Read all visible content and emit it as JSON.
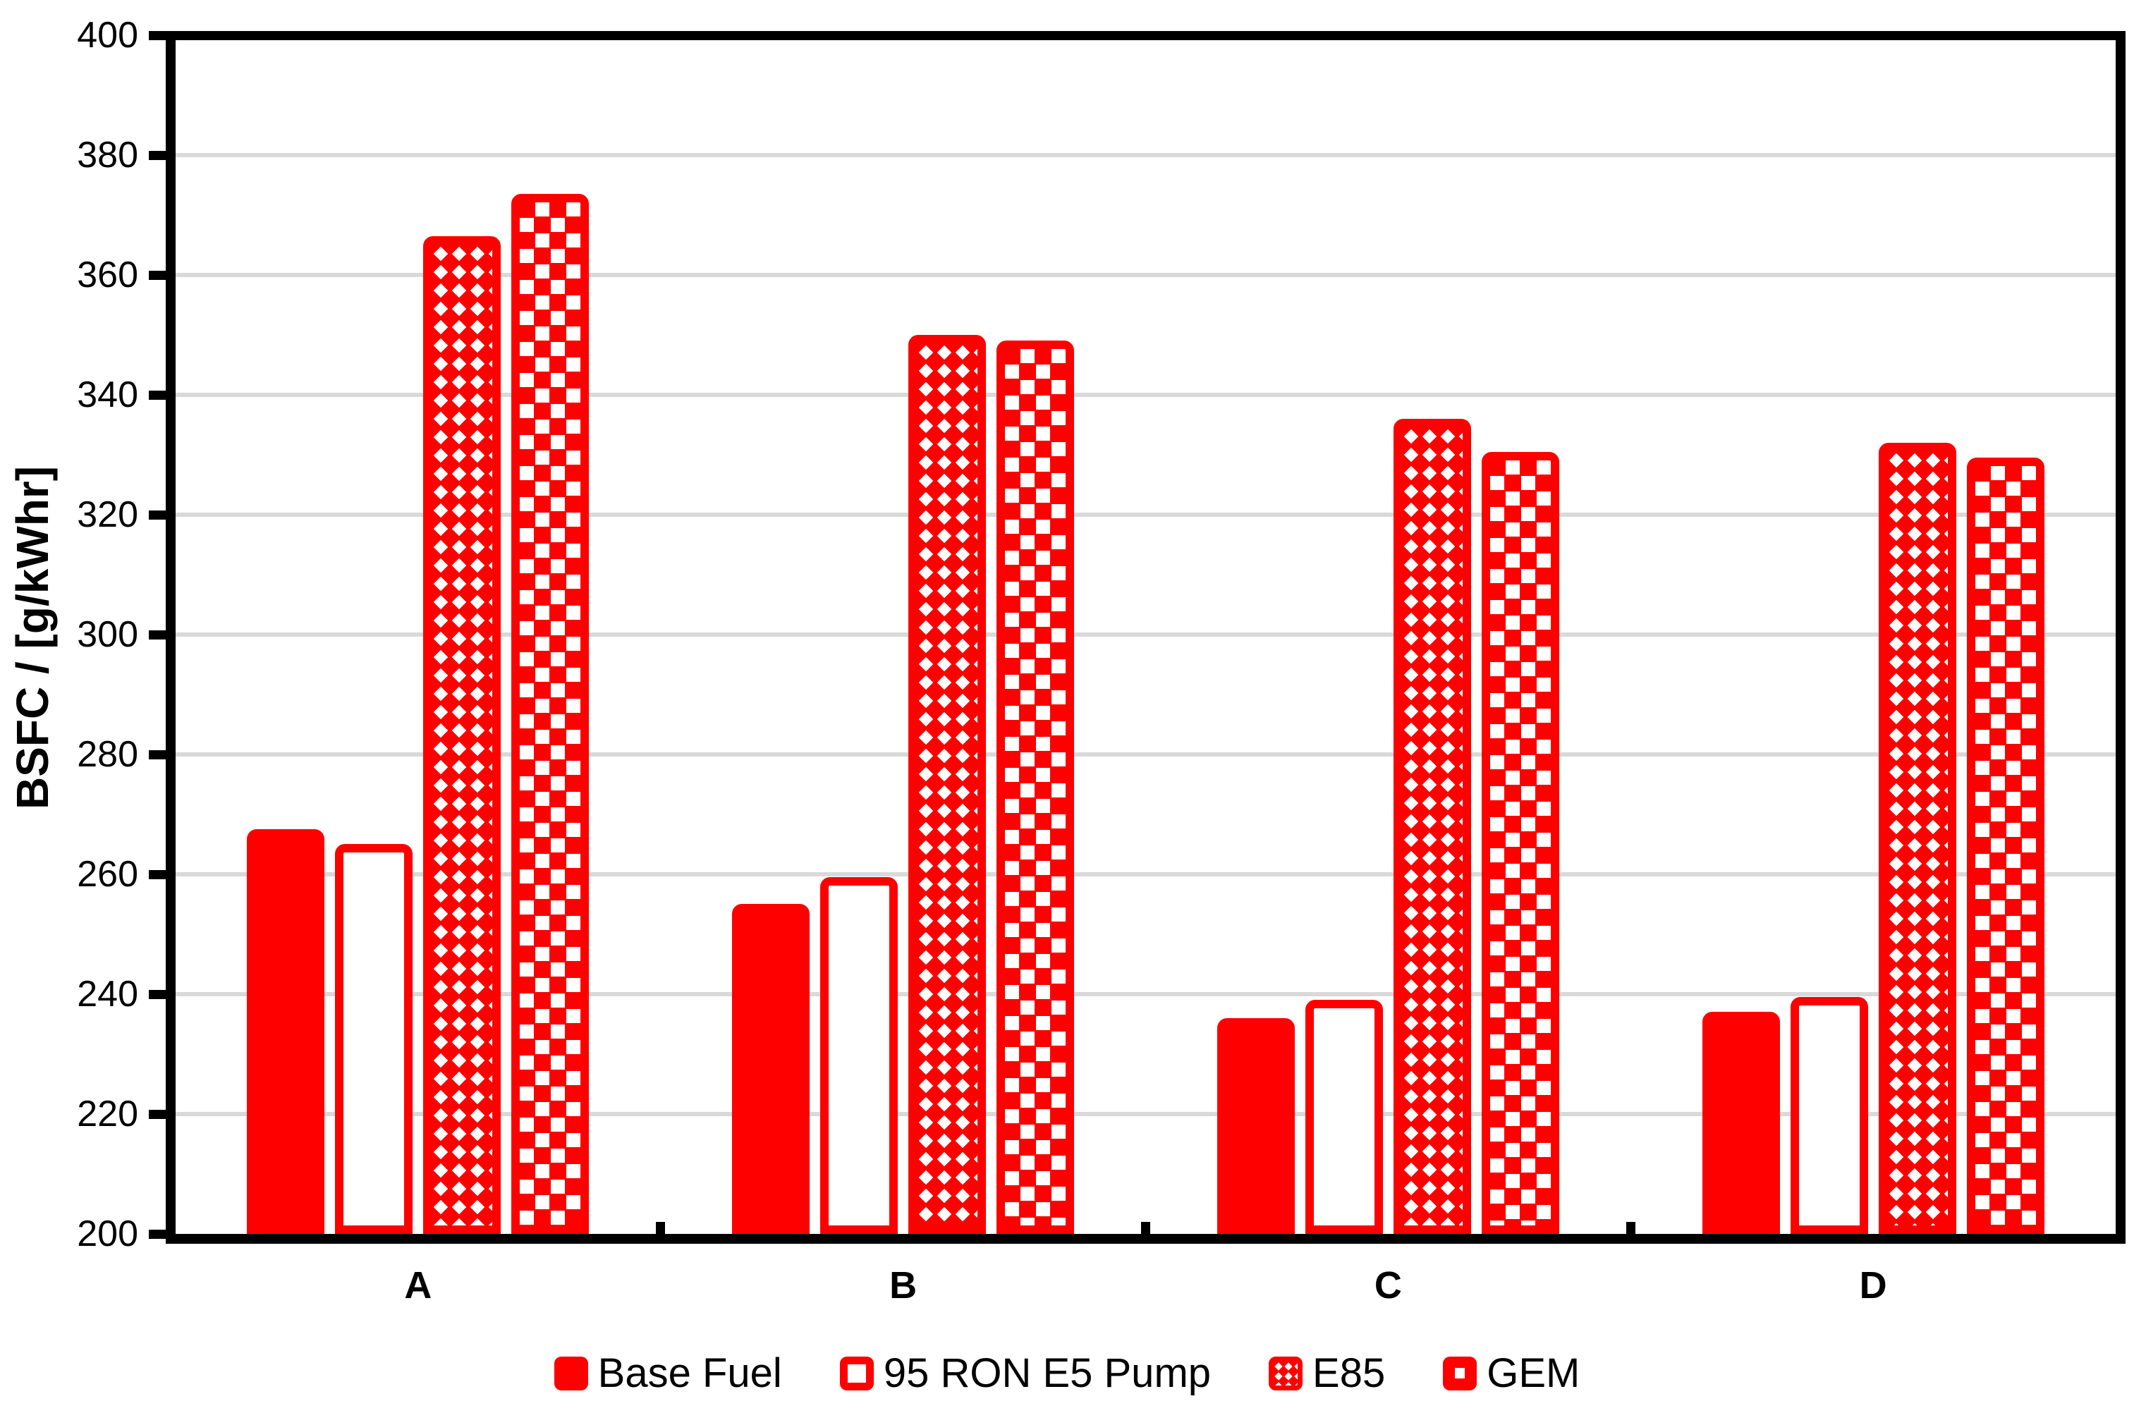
{
  "chart_data": {
    "type": "bar",
    "title": "",
    "ylabel": "BSFC / [g/kWhr]",
    "xlabel": "",
    "categories": [
      "A",
      "B",
      "C",
      "D"
    ],
    "series": [
      {
        "name": "Base Fuel",
        "pattern": "solid",
        "values": [
          267.5,
          255,
          236,
          237
        ]
      },
      {
        "name": "95 RON E5 Pump",
        "pattern": "outline",
        "values": [
          265,
          259.5,
          239,
          239.5
        ]
      },
      {
        "name": "E85",
        "pattern": "diagonal-checker",
        "values": [
          366.5,
          350,
          336,
          332
        ]
      },
      {
        "name": "GEM",
        "pattern": "dotted-squares",
        "values": [
          373.5,
          349,
          330.5,
          329.5
        ]
      }
    ],
    "ylim": [
      200,
      400
    ],
    "ytick_step": 20,
    "ytick_labels": [
      "200",
      "220",
      "240",
      "260",
      "280",
      "300",
      "320",
      "340",
      "360",
      "380",
      "400"
    ],
    "grid": true,
    "legend_position": "bottom",
    "accent_color": "#FF0000",
    "grid_color": "#D9D9D9",
    "axis_color": "#000000"
  }
}
